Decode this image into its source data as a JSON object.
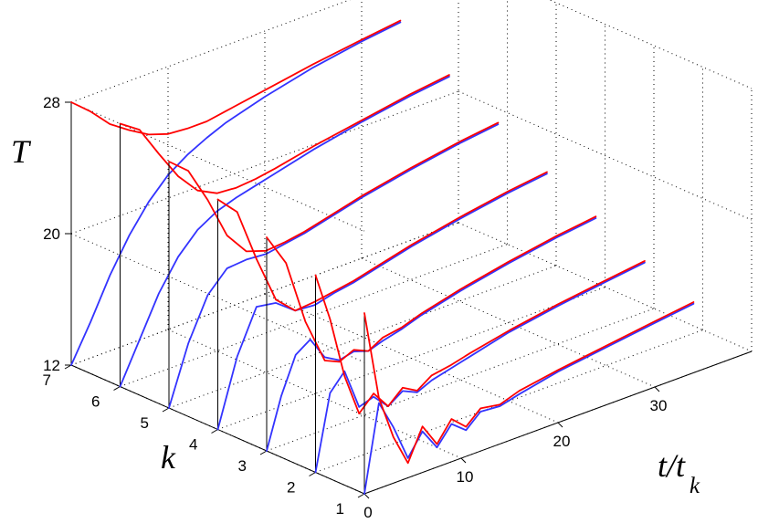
{
  "chart_data": {
    "type": "line",
    "plot_kind": "3d-waterfall",
    "title": "",
    "zlabel": "T",
    "ylabel": "k",
    "xlabel_main": "t/t",
    "xlabel_sub": "k",
    "x_ticks": [
      0,
      10,
      20,
      30
    ],
    "y_ticks": [
      1,
      2,
      3,
      4,
      5,
      6,
      7
    ],
    "z_ticks": [
      12,
      20,
      28
    ],
    "xlim": [
      0,
      40
    ],
    "ylim": [
      1,
      7
    ],
    "zlim": [
      12,
      28
    ],
    "grid": true,
    "series_colors": {
      "red": "#ff0000",
      "blue": "#3333ff"
    },
    "slices": [
      {
        "k": 1,
        "red": [
          [
            0,
            23.0
          ],
          [
            1.5,
            17.5
          ],
          [
            3,
            14.8
          ],
          [
            4.5,
            12.9
          ],
          [
            6,
            14.8
          ],
          [
            7.5,
            13.4
          ],
          [
            9,
            14.6
          ],
          [
            10.5,
            13.8
          ],
          [
            12,
            14.6
          ],
          [
            14,
            14.4
          ],
          [
            16,
            14.8
          ],
          [
            20,
            15.2
          ],
          [
            25,
            15.6
          ],
          [
            30,
            16.0
          ],
          [
            34,
            16.3
          ]
        ],
        "blue": [
          [
            0,
            12.0
          ],
          [
            1.5,
            17.2
          ],
          [
            3,
            15.4
          ],
          [
            4.5,
            13.2
          ],
          [
            6,
            14.5
          ],
          [
            7.5,
            13.2
          ],
          [
            9,
            14.3
          ],
          [
            10.5,
            13.6
          ],
          [
            12,
            14.4
          ],
          [
            14,
            14.3
          ],
          [
            16,
            14.6
          ],
          [
            20,
            15.1
          ],
          [
            25,
            15.5
          ],
          [
            30,
            15.9
          ],
          [
            34,
            16.2
          ]
        ]
      },
      {
        "k": 2,
        "red": [
          [
            0,
            24.0
          ],
          [
            1.5,
            21.0
          ],
          [
            3,
            17.2
          ],
          [
            4.5,
            14.6
          ],
          [
            6,
            15.5
          ],
          [
            7.5,
            14.4
          ],
          [
            9,
            15.2
          ],
          [
            10.5,
            14.7
          ],
          [
            12,
            15.3
          ],
          [
            14,
            15.5
          ],
          [
            16,
            15.8
          ],
          [
            20,
            16.3
          ],
          [
            25,
            16.8
          ],
          [
            30,
            17.2
          ],
          [
            34,
            17.5
          ]
        ],
        "blue": [
          [
            0,
            12.0
          ],
          [
            1.5,
            16.5
          ],
          [
            3,
            17.5
          ],
          [
            4.5,
            15.0
          ],
          [
            6,
            15.3
          ],
          [
            7.5,
            14.4
          ],
          [
            9,
            15.0
          ],
          [
            10.5,
            14.6
          ],
          [
            12,
            15.0
          ],
          [
            14,
            15.3
          ],
          [
            16,
            15.6
          ],
          [
            20,
            16.2
          ],
          [
            25,
            16.7
          ],
          [
            30,
            17.1
          ],
          [
            34,
            17.4
          ]
        ]
      },
      {
        "k": 3,
        "red": [
          [
            0,
            25.0
          ],
          [
            2,
            23.0
          ],
          [
            4,
            19.0
          ],
          [
            6,
            16.2
          ],
          [
            7.5,
            15.8
          ],
          [
            9,
            16.2
          ],
          [
            10.5,
            15.8
          ],
          [
            12,
            16.3
          ],
          [
            14,
            16.5
          ],
          [
            16,
            16.9
          ],
          [
            20,
            17.5
          ],
          [
            25,
            18.1
          ],
          [
            30,
            18.6
          ],
          [
            34,
            18.9
          ]
        ],
        "blue": [
          [
            0,
            12.0
          ],
          [
            1.5,
            15.0
          ],
          [
            3,
            17.2
          ],
          [
            4.5,
            17.8
          ],
          [
            6,
            16.4
          ],
          [
            7.5,
            15.9
          ],
          [
            9,
            16.1
          ],
          [
            10.5,
            15.8
          ],
          [
            12,
            16.1
          ],
          [
            14,
            16.4
          ],
          [
            16,
            16.8
          ],
          [
            20,
            17.4
          ],
          [
            25,
            18.0
          ],
          [
            30,
            18.5
          ],
          [
            34,
            18.8
          ]
        ]
      },
      {
        "k": 4,
        "red": [
          [
            0,
            26.0
          ],
          [
            2,
            24.8
          ],
          [
            4,
            21.5
          ],
          [
            6,
            18.6
          ],
          [
            8,
            17.5
          ],
          [
            10,
            17.6
          ],
          [
            12,
            17.8
          ],
          [
            14,
            18.0
          ],
          [
            16,
            18.3
          ],
          [
            20,
            18.9
          ],
          [
            25,
            19.5
          ],
          [
            30,
            20.0
          ],
          [
            34,
            20.3
          ]
        ],
        "blue": [
          [
            0,
            12.0
          ],
          [
            2,
            16.0
          ],
          [
            4,
            18.6
          ],
          [
            6,
            18.4
          ],
          [
            8,
            17.5
          ],
          [
            10,
            17.4
          ],
          [
            12,
            17.7
          ],
          [
            14,
            17.9
          ],
          [
            16,
            18.2
          ],
          [
            20,
            18.8
          ],
          [
            25,
            19.4
          ],
          [
            30,
            19.9
          ],
          [
            34,
            20.2
          ]
        ]
      },
      {
        "k": 5,
        "red": [
          [
            0,
            27.0
          ],
          [
            2,
            26.0
          ],
          [
            4,
            23.8
          ],
          [
            6,
            21.2
          ],
          [
            8,
            19.8
          ],
          [
            10,
            19.4
          ],
          [
            12,
            19.5
          ],
          [
            14,
            19.7
          ],
          [
            16,
            20.0
          ],
          [
            20,
            20.6
          ],
          [
            25,
            21.2
          ],
          [
            30,
            21.7
          ],
          [
            34,
            22.0
          ]
        ],
        "blue": [
          [
            0,
            12.0
          ],
          [
            2,
            15.5
          ],
          [
            4,
            18.0
          ],
          [
            6,
            19.2
          ],
          [
            8,
            19.3
          ],
          [
            10,
            19.2
          ],
          [
            12,
            19.4
          ],
          [
            14,
            19.6
          ],
          [
            16,
            19.9
          ],
          [
            20,
            20.5
          ],
          [
            25,
            21.1
          ],
          [
            30,
            21.6
          ],
          [
            34,
            21.9
          ]
        ]
      },
      {
        "k": 6,
        "red": [
          [
            0,
            28.0
          ],
          [
            2,
            27.2
          ],
          [
            4,
            25.3
          ],
          [
            6,
            23.5
          ],
          [
            8,
            22.2
          ],
          [
            10,
            21.6
          ],
          [
            12,
            21.5
          ],
          [
            14,
            21.6
          ],
          [
            16,
            21.8
          ],
          [
            20,
            22.3
          ],
          [
            25,
            22.8
          ],
          [
            30,
            23.3
          ],
          [
            34,
            23.6
          ]
        ],
        "blue": [
          [
            0,
            12.0
          ],
          [
            2,
            14.4
          ],
          [
            4,
            16.8
          ],
          [
            6,
            18.6
          ],
          [
            8,
            19.8
          ],
          [
            10,
            20.5
          ],
          [
            12,
            20.9
          ],
          [
            14,
            21.2
          ],
          [
            16,
            21.5
          ],
          [
            20,
            22.1
          ],
          [
            25,
            22.7
          ],
          [
            30,
            23.2
          ],
          [
            34,
            23.5
          ]
        ]
      },
      {
        "k": 7,
        "red": [
          [
            0,
            28.0
          ],
          [
            2,
            27.0
          ],
          [
            4,
            25.8
          ],
          [
            6,
            25.0
          ],
          [
            8,
            24.3
          ],
          [
            10,
            23.9
          ],
          [
            12,
            23.8
          ],
          [
            14,
            23.8
          ],
          [
            16,
            24.0
          ],
          [
            20,
            24.4
          ],
          [
            25,
            24.9
          ],
          [
            30,
            25.3
          ],
          [
            34,
            25.6
          ]
        ],
        "blue": [
          [
            0,
            12.0
          ],
          [
            2,
            14.2
          ],
          [
            4,
            16.6
          ],
          [
            6,
            18.6
          ],
          [
            8,
            20.2
          ],
          [
            10,
            21.4
          ],
          [
            12,
            22.2
          ],
          [
            14,
            22.8
          ],
          [
            16,
            23.3
          ],
          [
            20,
            24.0
          ],
          [
            25,
            24.7
          ],
          [
            30,
            25.2
          ],
          [
            34,
            25.5
          ]
        ]
      }
    ]
  }
}
